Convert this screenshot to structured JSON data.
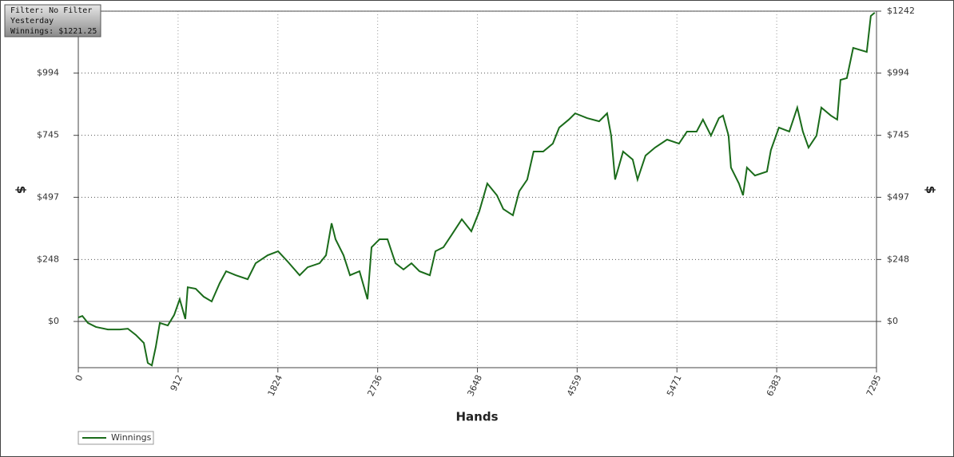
{
  "info_box": {
    "filter": "Filter: No Filter",
    "period": "Yesterday",
    "winnings": "Winnings: $1221.25"
  },
  "chart_data": {
    "type": "line",
    "x_label": "Hands",
    "y_label": "$",
    "y2_label": "$",
    "xlim": [
      0,
      7295
    ],
    "xticks": [
      0,
      912,
      1824,
      2736,
      3648,
      4559,
      5471,
      6383,
      7295
    ],
    "ylim": [
      -185,
      1242
    ],
    "yticks": [
      {
        "value": 0,
        "label": "$0"
      },
      {
        "value": 248,
        "label": "$248"
      },
      {
        "value": 497,
        "label": "$497"
      },
      {
        "value": 745,
        "label": "$745"
      },
      {
        "value": 994,
        "label": "$994"
      },
      {
        "value": 1242,
        "label": "$1242"
      }
    ],
    "grid": true,
    "legend": "bottom-left",
    "x": [
      0,
      37,
      88,
      161,
      270,
      380,
      453,
      526,
      599,
      635,
      672,
      708,
      745,
      818,
      876,
      927,
      978,
      1000,
      1073,
      1146,
      1219,
      1292,
      1351,
      1439,
      1548,
      1621,
      1731,
      1826,
      1913,
      2023,
      2096,
      2205,
      2264,
      2315,
      2351,
      2424,
      2483,
      2570,
      2643,
      2680,
      2753,
      2826,
      2899,
      2972,
      3045,
      3118,
      3213,
      3264,
      3337,
      3410,
      3505,
      3592,
      3665,
      3738,
      3826,
      3884,
      3972,
      4030,
      4103,
      4161,
      4249,
      4337,
      4395,
      4483,
      4541,
      4650,
      4760,
      4833,
      4870,
      4906,
      4979,
      5067,
      5111,
      5184,
      5271,
      5381,
      5490,
      5563,
      5651,
      5709,
      5782,
      5855,
      5892,
      5943,
      5965,
      6038,
      6075,
      6111,
      6184,
      6294,
      6330,
      6403,
      6498,
      6571,
      6622,
      6674,
      6747,
      6791,
      6878,
      6936,
      6966,
      7024,
      7082,
      7206,
      7243,
      7279
    ],
    "series": [
      {
        "name": "Winnings",
        "color": "#1a6b1a",
        "values": [
          16,
          22,
          -6,
          -22,
          -32,
          -32,
          -29,
          -54,
          -86,
          -166,
          -176,
          -102,
          -6,
          -16,
          26,
          89,
          10,
          137,
          131,
          99,
          80,
          153,
          201,
          185,
          169,
          233,
          265,
          281,
          240,
          185,
          217,
          233,
          265,
          393,
          329,
          265,
          185,
          201,
          89,
          297,
          329,
          329,
          233,
          208,
          233,
          201,
          185,
          281,
          297,
          345,
          409,
          361,
          441,
          552,
          505,
          450,
          425,
          521,
          568,
          680,
          680,
          712,
          776,
          808,
          833,
          814,
          801,
          833,
          744,
          568,
          680,
          648,
          568,
          664,
          696,
          728,
          712,
          760,
          760,
          808,
          744,
          814,
          824,
          744,
          616,
          552,
          505,
          616,
          584,
          600,
          686,
          776,
          760,
          856,
          760,
          696,
          744,
          856,
          824,
          808,
          967,
          974,
          1095,
          1079,
          1223,
          1236
        ]
      }
    ]
  }
}
